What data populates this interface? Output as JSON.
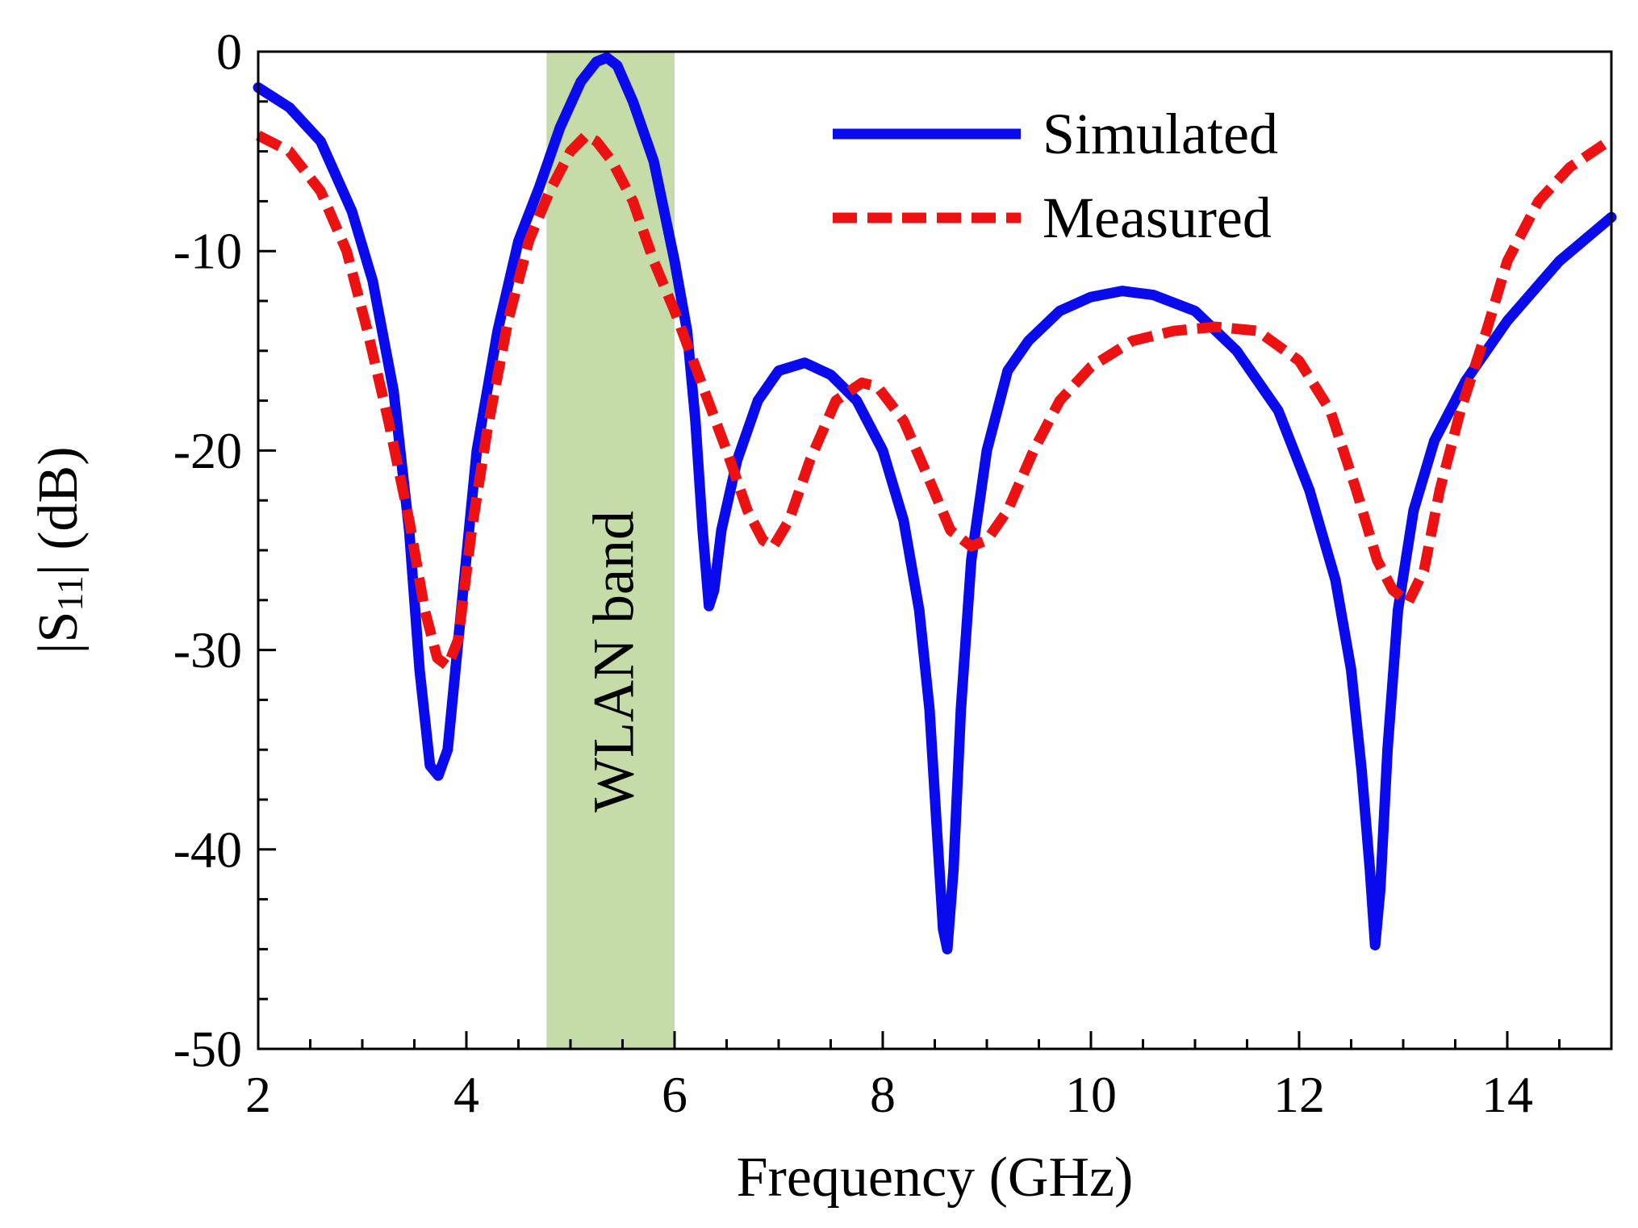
{
  "chart_data": {
    "type": "line",
    "title": "",
    "xlabel": "Frequency (GHz)",
    "ylabel": {
      "prefix": "|S",
      "subscript": "11",
      "suffix": "| (dB)"
    },
    "xlim": [
      2,
      15
    ],
    "ylim": [
      -50,
      0
    ],
    "x_ticks": [
      2,
      4,
      6,
      8,
      10,
      12,
      14
    ],
    "y_ticks": [
      0,
      -10,
      -20,
      -30,
      -40,
      -50
    ],
    "x_minor_step": 0.5,
    "y_minor_step": 2.5,
    "legend_position": "top-right",
    "band": {
      "label": "WLAN band",
      "x_start": 4.77,
      "x_end": 6.0,
      "color": "#c5dba8"
    },
    "series": [
      {
        "name": "Simulated",
        "style": "solid",
        "color": "#0a0aef",
        "points": [
          [
            2.0,
            -1.8
          ],
          [
            2.3,
            -2.8
          ],
          [
            2.6,
            -4.5
          ],
          [
            2.9,
            -8
          ],
          [
            3.1,
            -11.5
          ],
          [
            3.3,
            -17
          ],
          [
            3.45,
            -24
          ],
          [
            3.55,
            -31
          ],
          [
            3.65,
            -35.8
          ],
          [
            3.73,
            -36.3
          ],
          [
            3.82,
            -35
          ],
          [
            3.95,
            -28
          ],
          [
            4.1,
            -20
          ],
          [
            4.3,
            -14
          ],
          [
            4.5,
            -9.5
          ],
          [
            4.7,
            -6.8
          ],
          [
            4.9,
            -3.8
          ],
          [
            5.1,
            -1.5
          ],
          [
            5.25,
            -0.5
          ],
          [
            5.35,
            -0.3
          ],
          [
            5.45,
            -0.7
          ],
          [
            5.6,
            -2.5
          ],
          [
            5.8,
            -5.5
          ],
          [
            6.0,
            -10.5
          ],
          [
            6.12,
            -14
          ],
          [
            6.2,
            -18.5
          ],
          [
            6.27,
            -24
          ],
          [
            6.33,
            -27.8
          ],
          [
            6.38,
            -27
          ],
          [
            6.45,
            -24
          ],
          [
            6.6,
            -20.5
          ],
          [
            6.8,
            -17.5
          ],
          [
            7.0,
            -16
          ],
          [
            7.25,
            -15.6
          ],
          [
            7.5,
            -16.2
          ],
          [
            7.75,
            -17.5
          ],
          [
            8.0,
            -20
          ],
          [
            8.2,
            -23.5
          ],
          [
            8.35,
            -28
          ],
          [
            8.45,
            -33
          ],
          [
            8.52,
            -39
          ],
          [
            8.58,
            -44
          ],
          [
            8.62,
            -45
          ],
          [
            8.68,
            -41
          ],
          [
            8.75,
            -33
          ],
          [
            8.85,
            -25.5
          ],
          [
            9.0,
            -20
          ],
          [
            9.2,
            -16
          ],
          [
            9.4,
            -14.5
          ],
          [
            9.7,
            -13
          ],
          [
            10.0,
            -12.3
          ],
          [
            10.3,
            -12
          ],
          [
            10.6,
            -12.2
          ],
          [
            11.0,
            -13
          ],
          [
            11.4,
            -15
          ],
          [
            11.8,
            -18
          ],
          [
            12.1,
            -22
          ],
          [
            12.35,
            -26.5
          ],
          [
            12.5,
            -31
          ],
          [
            12.6,
            -36
          ],
          [
            12.68,
            -41
          ],
          [
            12.73,
            -44.8
          ],
          [
            12.78,
            -42
          ],
          [
            12.85,
            -35
          ],
          [
            12.95,
            -28
          ],
          [
            13.1,
            -23
          ],
          [
            13.3,
            -19.5
          ],
          [
            13.6,
            -16.5
          ],
          [
            14.0,
            -13.5
          ],
          [
            14.5,
            -10.5
          ],
          [
            15.0,
            -8.3
          ]
        ]
      },
      {
        "name": "Measured",
        "style": "dashed",
        "color": "#ee1111",
        "points": [
          [
            2.0,
            -4.2
          ],
          [
            2.3,
            -5
          ],
          [
            2.6,
            -7
          ],
          [
            2.85,
            -10
          ],
          [
            3.05,
            -14
          ],
          [
            3.25,
            -18.5
          ],
          [
            3.45,
            -23.5
          ],
          [
            3.6,
            -28
          ],
          [
            3.72,
            -30.4
          ],
          [
            3.82,
            -30.8
          ],
          [
            3.92,
            -29.5
          ],
          [
            4.05,
            -24
          ],
          [
            4.2,
            -19
          ],
          [
            4.4,
            -13.5
          ],
          [
            4.6,
            -9.5
          ],
          [
            4.8,
            -7
          ],
          [
            5.0,
            -5
          ],
          [
            5.15,
            -4.2
          ],
          [
            5.25,
            -4.5
          ],
          [
            5.4,
            -5.5
          ],
          [
            5.6,
            -7.5
          ],
          [
            5.8,
            -10.5
          ],
          [
            6.0,
            -13
          ],
          [
            6.25,
            -16.5
          ],
          [
            6.5,
            -20
          ],
          [
            6.7,
            -23
          ],
          [
            6.85,
            -24.5
          ],
          [
            6.95,
            -24.8
          ],
          [
            7.1,
            -23.5
          ],
          [
            7.3,
            -20.5
          ],
          [
            7.55,
            -17.5
          ],
          [
            7.8,
            -16.6
          ],
          [
            7.95,
            -16.8
          ],
          [
            8.2,
            -18.5
          ],
          [
            8.45,
            -21.5
          ],
          [
            8.65,
            -24
          ],
          [
            8.85,
            -24.8
          ],
          [
            9.0,
            -24.5
          ],
          [
            9.2,
            -23
          ],
          [
            9.45,
            -20
          ],
          [
            9.7,
            -17.5
          ],
          [
            10.0,
            -15.8
          ],
          [
            10.4,
            -14.5
          ],
          [
            10.8,
            -14
          ],
          [
            11.2,
            -13.8
          ],
          [
            11.6,
            -14
          ],
          [
            12.0,
            -15.5
          ],
          [
            12.3,
            -18
          ],
          [
            12.55,
            -22
          ],
          [
            12.75,
            -25.5
          ],
          [
            12.9,
            -27
          ],
          [
            13.05,
            -27.6
          ],
          [
            13.2,
            -26
          ],
          [
            13.35,
            -22
          ],
          [
            13.55,
            -18
          ],
          [
            13.8,
            -14
          ],
          [
            14.0,
            -10.5
          ],
          [
            14.3,
            -7.5
          ],
          [
            14.6,
            -5.8
          ],
          [
            15.0,
            -4.4
          ]
        ]
      }
    ]
  }
}
